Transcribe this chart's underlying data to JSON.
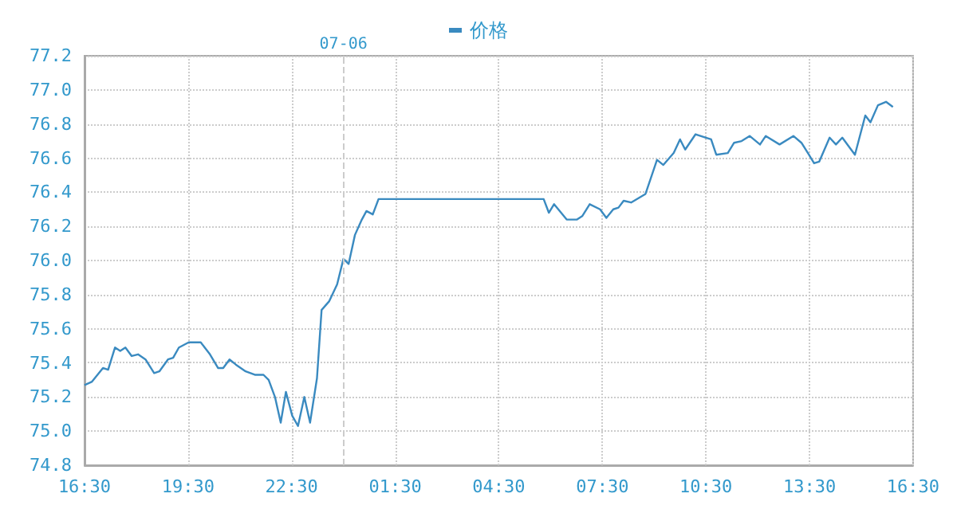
{
  "chart_data": {
    "type": "line",
    "x": [
      "--07-05T16:30",
      "--07-05T16:43",
      "--07-05T17:02",
      "--07-05T17:11",
      "--07-05T17:23",
      "--07-05T17:32",
      "--07-05T17:41",
      "--07-05T17:52",
      "--07-05T18:03",
      "--07-05T18:16",
      "--07-05T18:31",
      "--07-05T18:40",
      "--07-05T18:55",
      "--07-05T19:04",
      "--07-05T19:14",
      "--07-05T19:31",
      "--07-05T19:52",
      "--07-05T20:08",
      "--07-05T20:22",
      "--07-05T20:31",
      "--07-05T20:42",
      "--07-05T20:53",
      "--07-05T21:10",
      "--07-05T21:26",
      "--07-05T21:41",
      "--07-05T21:50",
      "--07-05T22:01",
      "--07-05T22:11",
      "--07-05T22:20",
      "--07-05T22:31",
      "--07-05T22:41",
      "--07-05T22:52",
      "--07-05T23:02",
      "--07-05T23:14",
      "--07-05T23:22",
      "--07-05T23:35",
      "--07-05T23:49",
      "--07-06T00:00",
      "--07-06T00:09",
      "--07-06T00:20",
      "--07-06T00:32",
      "--07-06T00:40",
      "--07-06T00:51",
      "--07-06T01:01",
      "--07-06T05:48",
      "--07-06T05:57",
      "--07-06T06:06",
      "--07-06T06:28",
      "--07-06T06:46",
      "--07-06T06:55",
      "--07-06T07:08",
      "--07-06T07:26",
      "--07-06T07:37",
      "--07-06T07:49",
      "--07-06T07:58",
      "--07-06T08:07",
      "--07-06T08:20",
      "--07-06T08:45",
      "--07-06T09:05",
      "--07-06T09:16",
      "--07-06T09:34",
      "--07-06T09:45",
      "--07-06T09:54",
      "--07-06T10:12",
      "--07-06T10:30",
      "--07-06T10:39",
      "--07-06T10:48",
      "--07-06T11:08",
      "--07-06T11:19",
      "--07-06T11:32",
      "--07-06T11:46",
      "--07-06T12:04",
      "--07-06T12:14",
      "--07-06T12:38",
      "--07-06T13:02",
      "--07-06T13:16",
      "--07-06T13:29",
      "--07-06T13:38",
      "--07-06T13:47",
      "--07-06T14:05",
      "--07-06T14:16",
      "--07-06T14:27",
      "--07-06T14:49",
      "--07-06T15:07",
      "--07-06T15:16",
      "--07-06T15:29",
      "--07-06T15:43",
      "--07-06T15:55"
    ],
    "series": [
      {
        "name": "价格",
        "color": "#3a8ac0",
        "values": [
          75.27,
          75.29,
          75.37,
          75.36,
          75.49,
          75.47,
          75.49,
          75.44,
          75.45,
          75.42,
          75.34,
          75.35,
          75.42,
          75.43,
          75.49,
          75.52,
          75.52,
          75.45,
          75.37,
          75.37,
          75.42,
          75.39,
          75.35,
          75.33,
          75.33,
          75.3,
          75.2,
          75.05,
          75.23,
          75.09,
          75.03,
          75.2,
          75.05,
          75.31,
          75.71,
          75.76,
          75.86,
          76.01,
          75.98,
          76.15,
          76.24,
          76.29,
          76.27,
          76.36,
          76.36,
          76.28,
          76.33,
          76.24,
          76.24,
          76.26,
          76.33,
          76.3,
          76.25,
          76.3,
          76.31,
          76.35,
          76.34,
          76.39,
          76.59,
          76.56,
          76.63,
          76.71,
          76.65,
          76.74,
          76.72,
          76.71,
          76.62,
          76.63,
          76.69,
          76.7,
          76.73,
          76.68,
          76.73,
          76.68,
          76.73,
          76.69,
          76.62,
          76.57,
          76.58,
          76.72,
          76.68,
          76.72,
          76.62,
          76.85,
          76.81,
          76.91,
          76.93,
          76.9
        ]
      }
    ],
    "xlim": [
      "--07-05T16:30",
      "--07-06T16:30"
    ],
    "xticks": [
      {
        "value": "--07-05T16:30",
        "label": "16:30"
      },
      {
        "value": "--07-05T19:30",
        "label": "19:30"
      },
      {
        "value": "--07-05T22:30",
        "label": "22:30"
      },
      {
        "value": "--07-06T01:30",
        "label": "01:30"
      },
      {
        "value": "--07-06T04:30",
        "label": "04:30"
      },
      {
        "value": "--07-06T07:30",
        "label": "07:30"
      },
      {
        "value": "--07-06T10:30",
        "label": "10:30"
      },
      {
        "value": "--07-06T13:30",
        "label": "13:30"
      },
      {
        "value": "--07-06T16:30",
        "label": "16:30"
      }
    ],
    "ylim": [
      74.8,
      77.2
    ],
    "yticks": [
      74.8,
      {
        "value": 75,
        "label": "75.0"
      },
      75.2,
      75.4,
      75.6,
      75.8,
      {
        "value": 76,
        "label": "76.0"
      },
      76.2,
      76.4,
      76.6,
      76.8,
      {
        "value": 77,
        "label": "77.0"
      },
      77.2
    ],
    "ref_lines": [
      {
        "axis": "x",
        "value": "--07-06T00:00",
        "label": "07-06",
        "line_style": "dashed",
        "color": "#cccccc"
      }
    ],
    "grid": true,
    "legend": "top",
    "marker": "none",
    "line_style": "solid"
  }
}
